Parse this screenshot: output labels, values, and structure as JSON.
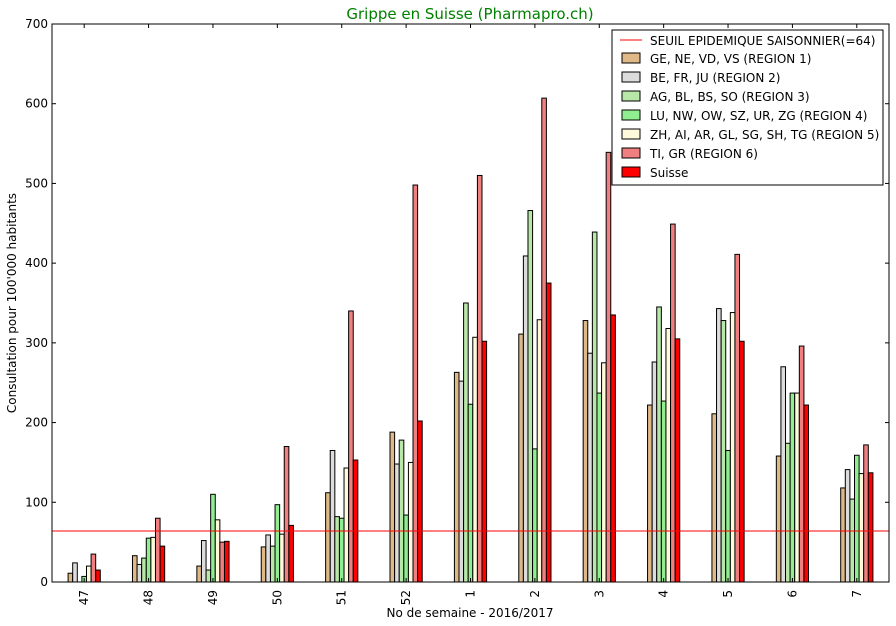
{
  "chart_data": {
    "type": "bar",
    "title": "Grippe en Suisse (Pharmapro.ch)",
    "xlabel": "No de semaine - 2016/2017",
    "ylabel": "Consultation pour 100'000 habitants",
    "ylim": [
      0,
      700
    ],
    "yticks": [
      0,
      100,
      200,
      300,
      400,
      500,
      600,
      700
    ],
    "categories": [
      "47",
      "48",
      "49",
      "50",
      "51",
      "52",
      "1",
      "2",
      "3",
      "4",
      "5",
      "6",
      "7"
    ],
    "threshold": {
      "name": "SEUIL EPIDEMIQUE SAISONNIER(=64)",
      "value": 64,
      "color": "#ff0000"
    },
    "legend_position": "top-right",
    "series": [
      {
        "name": "GE, NE, VD, VS (REGION 1)",
        "color": "#deb887",
        "values": [
          11,
          33,
          20,
          44,
          112,
          188,
          263,
          311,
          328,
          222,
          211,
          158,
          118
        ]
      },
      {
        "name": "BE, FR, JU (REGION 2)",
        "color": "#dcdcdc",
        "values": [
          24,
          22,
          52,
          59,
          165,
          148,
          252,
          409,
          287,
          276,
          343,
          270,
          141
        ]
      },
      {
        "name": "AG, BL, BS, SO (REGION 3)",
        "color": "#b8e8a8",
        "values": [
          0,
          30,
          15,
          45,
          82,
          178,
          350,
          466,
          439,
          345,
          328,
          174,
          104
        ]
      },
      {
        "name": "LU, NW, OW, SZ, UR, ZG (REGION 4)",
        "color": "#90ee90",
        "values": [
          7,
          55,
          110,
          97,
          80,
          84,
          223,
          167,
          237,
          227,
          165,
          237,
          159
        ]
      },
      {
        "name": "ZH, AI, AR, GL, SG, SH, TG (REGION 5)",
        "color": "#fffadc",
        "values": [
          20,
          56,
          78,
          60,
          143,
          150,
          307,
          329,
          275,
          318,
          338,
          237,
          136
        ]
      },
      {
        "name": "TI, GR (REGION 6)",
        "color": "#f08080",
        "values": [
          35,
          80,
          50,
          170,
          340,
          498,
          510,
          607,
          539,
          449,
          411,
          296,
          172
        ]
      },
      {
        "name": "Suisse",
        "color": "#ff0000",
        "values": [
          15,
          45,
          51,
          71,
          153,
          202,
          302,
          375,
          335,
          305,
          302,
          222,
          137
        ]
      }
    ]
  }
}
